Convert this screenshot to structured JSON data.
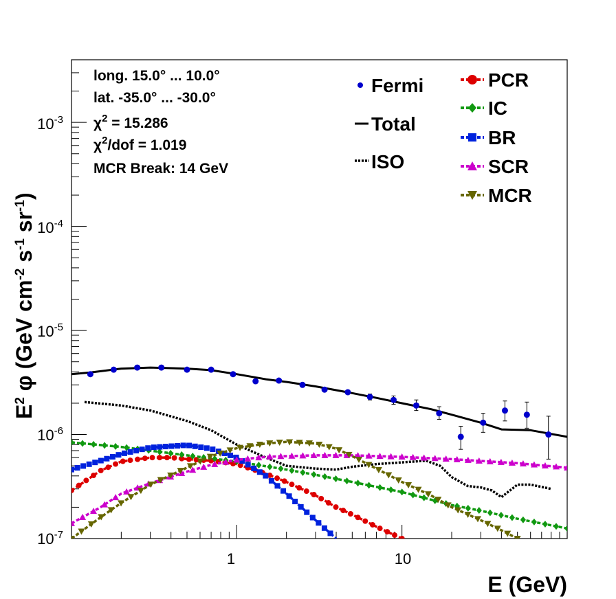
{
  "chart_data": {
    "type": "scatter",
    "xlabel": "E (GeV)",
    "ylabel": "E2 φ (GeV cm-2 s-1 sr-1)",
    "xscale": "log",
    "yscale": "log",
    "xlim": [
      0.1,
      100
    ],
    "ylim": [
      1e-07,
      0.004
    ],
    "x_ticks": [
      {
        "value": 1,
        "label": "1"
      },
      {
        "value": 10,
        "label": "10"
      }
    ],
    "y_ticks": [
      {
        "value": 1e-07,
        "base": "10",
        "exp": "-7"
      },
      {
        "value": 1e-06,
        "base": "10",
        "exp": "-6"
      },
      {
        "value": 1e-05,
        "base": "10",
        "exp": "-5"
      },
      {
        "value": 0.0001,
        "base": "10",
        "exp": "-4"
      },
      {
        "value": 0.001,
        "base": "10",
        "exp": "-3"
      }
    ],
    "annotations": {
      "line1": "long. 15.0° ... 10.0°",
      "line2": "lat. -35.0° ... -30.0°",
      "chi_sym": "χ",
      "chi_exp": "2",
      "chi_value": " = 15.286",
      "chidof_value": "/dof = 1.019",
      "break": "MCR Break: 14 GeV"
    },
    "legend": [
      {
        "name": "Fermi",
        "color": "#0000cc"
      },
      {
        "name": "Total",
        "color": "#000000"
      },
      {
        "name": "ISO",
        "color": "#000000"
      },
      {
        "name": "PCR",
        "color": "#dd0000"
      },
      {
        "name": "IC",
        "color": "#119911"
      },
      {
        "name": "BR",
        "color": "#0022dd"
      },
      {
        "name": "SCR",
        "color": "#cc00cc"
      },
      {
        "name": "MCR",
        "color": "#666600"
      }
    ],
    "fermi": {
      "x": [
        0.13,
        0.18,
        0.25,
        0.35,
        0.5,
        0.7,
        0.95,
        1.3,
        1.8,
        2.5,
        3.4,
        4.7,
        6.4,
        8.9,
        12.2,
        16.8,
        22.7,
        31,
        42,
        57,
        77
      ],
      "y": [
        3.8e-06,
        4.2e-06,
        4.4e-06,
        4.4e-06,
        4.2e-06,
        4.2e-06,
        3.8e-06,
        3.25e-06,
        3.3e-06,
        3e-06,
        2.7e-06,
        2.55e-06,
        2.3e-06,
        2.15e-06,
        1.9e-06,
        1.6e-06,
        9.5e-07,
        1.3e-06,
        1.7e-06,
        1.55e-06,
        1e-06
      ],
      "err_lo": [
        3.7e-06,
        4.1e-06,
        4.3e-06,
        4.3e-06,
        4.1e-06,
        4.1e-06,
        3.7e-06,
        3.15e-06,
        3.2e-06,
        2.9e-06,
        2.6e-06,
        2.45e-06,
        2.15e-06,
        1.95e-06,
        1.7e-06,
        1.4e-06,
        7.2e-07,
        1.05e-06,
        1.35e-06,
        1.15e-06,
        5.8e-07
      ],
      "err_hi": [
        3.9e-06,
        4.3e-06,
        4.5e-06,
        4.5e-06,
        4.3e-06,
        4.3e-06,
        3.9e-06,
        3.35e-06,
        3.4e-06,
        3.1e-06,
        2.8e-06,
        2.65e-06,
        2.45e-06,
        2.35e-06,
        2.15e-06,
        1.85e-06,
        1.2e-06,
        1.6e-06,
        2.1e-06,
        2.05e-06,
        1.5e-06
      ]
    },
    "series": [
      {
        "name": "Total",
        "color": "#000000",
        "style": "solid",
        "marker": "none",
        "x": [
          0.1,
          0.13,
          0.2,
          0.3,
          0.5,
          0.7,
          1,
          1.5,
          2,
          3,
          5,
          7,
          10,
          15,
          20,
          30,
          40,
          60,
          100
        ],
        "y": [
          3.8e-06,
          3.95e-06,
          4.3e-06,
          4.4e-06,
          4.3e-06,
          4.15e-06,
          3.8e-06,
          3.4e-06,
          3.2e-06,
          2.9e-06,
          2.5e-06,
          2.25e-06,
          2e-06,
          1.75e-06,
          1.55e-06,
          1.3e-06,
          1.12e-06,
          1.1e-06,
          9.5e-07
        ]
      },
      {
        "name": "ISO",
        "color": "#000000",
        "style": "dotted",
        "marker": "none",
        "x": [
          0.12,
          0.2,
          0.3,
          0.5,
          0.7,
          1,
          1.5,
          2,
          3,
          4,
          5,
          7,
          10,
          14,
          17,
          20,
          25,
          30,
          35,
          40,
          50,
          60,
          80
        ],
        "y": [
          2.05e-06,
          1.9e-06,
          1.7e-06,
          1.35e-06,
          1.1e-06,
          8e-07,
          6e-07,
          5e-07,
          4.7e-07,
          4.6e-07,
          4.9e-07,
          5.2e-07,
          5.4e-07,
          5.6e-07,
          5e-07,
          3.9e-07,
          3.2e-07,
          3.1e-07,
          2.9e-07,
          2.5e-07,
          3.3e-07,
          3.3e-07,
          3e-07
        ]
      },
      {
        "name": "PCR",
        "color": "#dd0000",
        "style": "dashed",
        "marker": "circle",
        "x": [
          0.1,
          0.15,
          0.2,
          0.3,
          0.4,
          0.5,
          0.7,
          1,
          1.5,
          2,
          3,
          4,
          5,
          7,
          10
        ],
        "y": [
          2.9e-07,
          4.5e-07,
          5.5e-07,
          6e-07,
          6e-07,
          5.8e-07,
          5.6e-07,
          5.2e-07,
          4.2e-07,
          3.5e-07,
          2.6e-07,
          2e-07,
          1.7e-07,
          1.3e-07,
          1e-07
        ]
      },
      {
        "name": "IC",
        "color": "#119911",
        "style": "dashed",
        "marker": "diamond",
        "x": [
          0.1,
          0.2,
          0.3,
          0.5,
          1,
          2,
          3,
          5,
          10,
          20,
          30,
          50,
          100
        ],
        "y": [
          8.4e-07,
          7.6e-07,
          7e-07,
          6.3e-07,
          5.5e-07,
          4.6e-07,
          4.1e-07,
          3.5e-07,
          2.8e-07,
          2.1e-07,
          1.85e-07,
          1.55e-07,
          1.25e-07
        ]
      },
      {
        "name": "BR",
        "color": "#0022dd",
        "style": "dashed",
        "marker": "square",
        "x": [
          0.1,
          0.15,
          0.2,
          0.3,
          0.5,
          0.7,
          1,
          1.5,
          2,
          3,
          4
        ],
        "y": [
          4.6e-07,
          5.6e-07,
          6.5e-07,
          7.5e-07,
          7.9e-07,
          7.3e-07,
          6e-07,
          4e-07,
          2.7e-07,
          1.5e-07,
          1e-07
        ]
      },
      {
        "name": "SCR",
        "color": "#cc00cc",
        "style": "dashed",
        "marker": "triangle-up",
        "x": [
          0.1,
          0.15,
          0.2,
          0.3,
          0.5,
          0.7,
          1,
          1.5,
          2,
          3,
          5,
          10,
          20,
          50,
          100
        ],
        "y": [
          1.4e-07,
          2e-07,
          2.7e-07,
          3.4e-07,
          4.4e-07,
          5.1e-07,
          5.7e-07,
          6.1e-07,
          6.2e-07,
          6.3e-07,
          6.3e-07,
          6.1e-07,
          5.8e-07,
          5.3e-07,
          4.8e-07
        ]
      },
      {
        "name": "MCR",
        "color": "#666600",
        "style": "dashed",
        "marker": "triangle-down",
        "x": [
          0.1,
          0.15,
          0.2,
          0.3,
          0.5,
          0.7,
          1,
          1.5,
          2,
          3,
          4,
          5,
          7,
          10,
          15,
          20,
          30,
          40,
          50
        ],
        "y": [
          1e-07,
          1.6e-07,
          2.2e-07,
          3.3e-07,
          4.8e-07,
          6.2e-07,
          7.4e-07,
          8.2e-07,
          8.5e-07,
          8.2e-07,
          7.3e-07,
          6.2e-07,
          4.7e-07,
          3.5e-07,
          2.6e-07,
          2e-07,
          1.5e-07,
          1.2e-07,
          1e-07
        ]
      }
    ]
  }
}
